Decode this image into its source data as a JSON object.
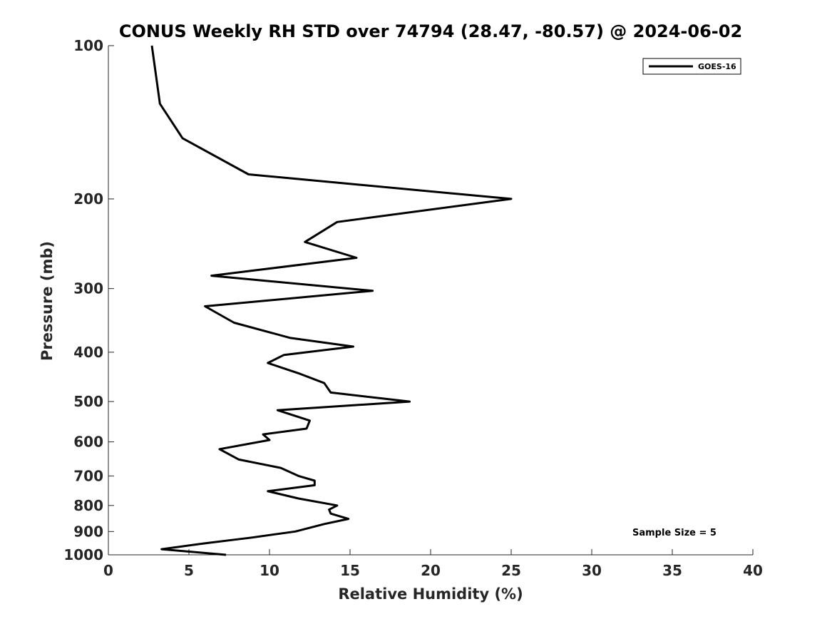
{
  "chart_data": {
    "type": "line",
    "title": "CONUS Weekly RH STD over 74794 (28.47, -80.57) @ 2024-06-02",
    "xlabel": "Relative Humidity (%)",
    "ylabel": "Pressure (mb)",
    "xlim": [
      0,
      40
    ],
    "ylim": [
      100,
      1000
    ],
    "y_scale": "log",
    "y_reversed": true,
    "x_ticks": [
      "0",
      "5",
      "10",
      "15",
      "20",
      "25",
      "30",
      "35",
      "40"
    ],
    "y_ticks": [
      "100",
      "200",
      "300",
      "400",
      "500",
      "600",
      "700",
      "800",
      "900",
      "1000"
    ],
    "grid": false,
    "legend_position": "top-right",
    "annotation": "Sample Size = 5",
    "series": [
      {
        "name": "GOES-16",
        "color": "#000000",
        "x": [
          2.7,
          3.2,
          4.6,
          8.7,
          25.0,
          14.2,
          12.2,
          15.4,
          6.4,
          16.4,
          6.0,
          7.8,
          11.3,
          15.2,
          10.9,
          9.9,
          11.8,
          13.4,
          13.8,
          18.7,
          10.5,
          12.5,
          12.3,
          9.6,
          10.0,
          6.9,
          8.1,
          10.7,
          11.8,
          12.8,
          12.8,
          9.9,
          11.8,
          14.2,
          13.7,
          13.8,
          14.9,
          13.4,
          11.6,
          8.9,
          5.9,
          3.3,
          7.3
        ],
        "y": [
          100,
          130,
          152,
          179,
          200,
          222,
          243,
          261,
          283,
          303,
          325,
          350,
          375,
          390,
          405,
          420,
          440,
          460,
          480,
          500,
          520,
          545,
          565,
          580,
          595,
          620,
          650,
          675,
          700,
          715,
          730,
          750,
          775,
          800,
          815,
          830,
          850,
          870,
          900,
          925,
          950,
          975,
          1000
        ]
      }
    ]
  }
}
